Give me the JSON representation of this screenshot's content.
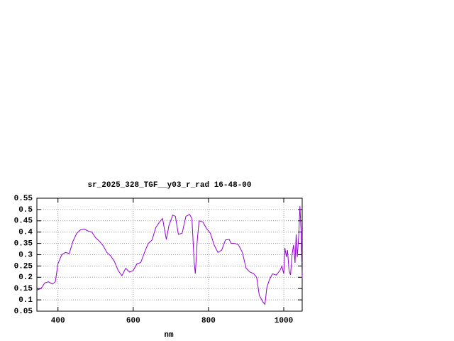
{
  "chart_data": {
    "type": "line",
    "title": "sr_2025_328_TGF__y03_r_rad 16-48-00",
    "x_label": "nm",
    "xlim": [
      344,
      1049
    ],
    "xticks": [
      400,
      600,
      800,
      1000
    ],
    "ylim": [
      0.05,
      0.55
    ],
    "yticks": [
      0.05,
      0.1,
      0.15,
      0.2,
      0.25,
      0.3,
      0.35,
      0.4,
      0.45,
      0.5,
      0.55
    ],
    "grid": true,
    "series": [
      {
        "color": "#9400d3",
        "x": [
          345,
          355,
          365,
          375,
          385,
          393,
          400,
          410,
          420,
          430,
          440,
          450,
          460,
          470,
          480,
          490,
          500,
          510,
          520,
          530,
          540,
          550,
          560,
          570,
          580,
          590,
          600,
          610,
          620,
          630,
          640,
          650,
          660,
          670,
          678,
          688,
          695,
          705,
          712,
          720,
          730,
          740,
          750,
          756,
          762,
          765,
          770,
          775,
          785,
          795,
          805,
          815,
          825,
          835,
          845,
          855,
          860,
          870,
          880,
          890,
          900,
          910,
          920,
          928,
          935,
          945,
          950,
          955,
          962,
          970,
          980,
          990,
          995,
          1000,
          1003,
          1007,
          1010,
          1014,
          1018,
          1022,
          1026,
          1030,
          1033,
          1036,
          1040,
          1043,
          1046,
          1049
        ],
        "values": [
          0.144,
          0.15,
          0.175,
          0.18,
          0.17,
          0.18,
          0.26,
          0.3,
          0.31,
          0.305,
          0.36,
          0.395,
          0.41,
          0.413,
          0.405,
          0.4,
          0.375,
          0.36,
          0.34,
          0.31,
          0.295,
          0.27,
          0.23,
          0.207,
          0.24,
          0.223,
          0.23,
          0.26,
          0.265,
          0.31,
          0.35,
          0.365,
          0.42,
          0.445,
          0.46,
          0.367,
          0.43,
          0.475,
          0.47,
          0.39,
          0.395,
          0.47,
          0.478,
          0.46,
          0.264,
          0.216,
          0.36,
          0.45,
          0.445,
          0.415,
          0.395,
          0.343,
          0.31,
          0.32,
          0.365,
          0.368,
          0.35,
          0.35,
          0.343,
          0.31,
          0.24,
          0.223,
          0.216,
          0.2,
          0.12,
          0.09,
          0.08,
          0.154,
          0.19,
          0.215,
          0.21,
          0.23,
          0.25,
          0.215,
          0.33,
          0.29,
          0.32,
          0.23,
          0.21,
          0.3,
          0.343,
          0.264,
          0.39,
          0.29,
          0.39,
          0.515,
          0.405,
          0.194
        ]
      }
    ]
  }
}
